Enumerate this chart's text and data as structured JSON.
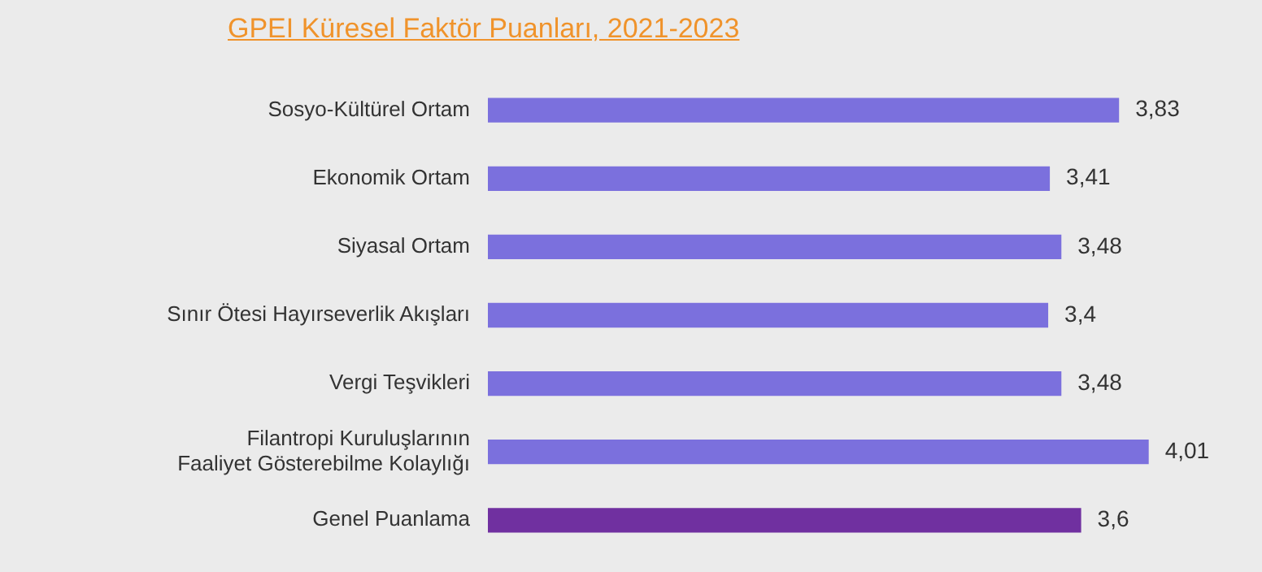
{
  "chart_data": {
    "type": "bar",
    "orientation": "horizontal",
    "title": "GPEI Küresel Faktör Puanları, 2021-2023",
    "categories": [
      "Sosyo-Kültürel Ortam",
      "Ekonomik Ortam",
      "Siyasal Ortam",
      "Sınır Ötesi Hayırseverlik Akışları",
      "Vergi Teşvikleri",
      "Filantropi Kuruluşlarının Faaliyet Gösterebilme Kolaylığı",
      "Genel Puanlama"
    ],
    "values": [
      3.83,
      3.41,
      3.48,
      3.4,
      3.48,
      4.01,
      3.6
    ],
    "value_labels": [
      "3,83",
      "3,41",
      "3,48",
      "3,4",
      "3,48",
      "4,01",
      "3,6"
    ],
    "colors": [
      "#7b70dd",
      "#7b70dd",
      "#7b70dd",
      "#7b70dd",
      "#7b70dd",
      "#7b70dd",
      "#7030a0"
    ],
    "legend": false,
    "tick_labels": "y"
  }
}
